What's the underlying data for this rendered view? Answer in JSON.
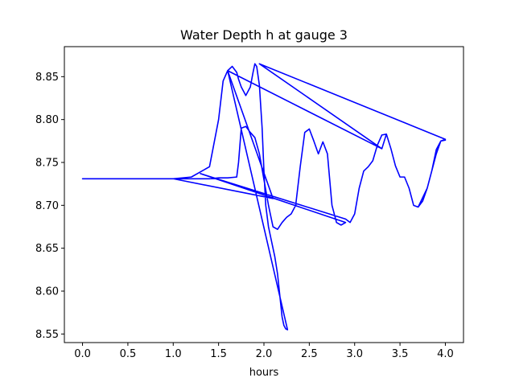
{
  "chart_data": {
    "type": "line",
    "title": "Water Depth h at gauge 3",
    "xlabel": "hours",
    "ylabel": "",
    "xlim": [
      -0.2,
      4.2
    ],
    "ylim": [
      8.54,
      8.885
    ],
    "xticks": [
      0.0,
      0.5,
      1.0,
      1.5,
      2.0,
      2.5,
      3.0,
      3.5,
      4.0
    ],
    "xtick_labels": [
      "0.0",
      "0.5",
      "1.0",
      "1.5",
      "2.0",
      "2.5",
      "3.0",
      "3.5",
      "4.0"
    ],
    "yticks": [
      8.55,
      8.6,
      8.65,
      8.7,
      8.75,
      8.8,
      8.85
    ],
    "ytick_labels": [
      "8.55",
      "8.60",
      "8.65",
      "8.70",
      "8.75",
      "8.80",
      "8.85"
    ],
    "grid": false,
    "legend": "none",
    "series": [
      {
        "name": "",
        "color": "#0000ff",
        "x": [
          0.0,
          0.3,
          0.6,
          0.9,
          1.0,
          1.2,
          1.4,
          1.5,
          1.55,
          1.6,
          1.65,
          1.7,
          1.72,
          1.75,
          1.8,
          1.85,
          1.88,
          1.9,
          1.92,
          1.95,
          1.98,
          2.0,
          2.02,
          2.05,
          2.08,
          2.1,
          2.12,
          2.15,
          2.18,
          2.2,
          2.22,
          2.24,
          2.26,
          1.6,
          3.3,
          3.35,
          3.4,
          3.45,
          3.5,
          3.55,
          3.6,
          3.65,
          3.7,
          3.8,
          3.9,
          3.95,
          4.0,
          1.95,
          3.3,
          1.6,
          2.1,
          1.0,
          0.12,
          1.0,
          1.2,
          1.3,
          1.4,
          1.5,
          1.6,
          1.7,
          1.72,
          1.75,
          1.8,
          1.85,
          1.9,
          1.95,
          2.0,
          2.05,
          2.1,
          2.15,
          2.2,
          2.25,
          2.3,
          2.35,
          2.4,
          2.45,
          2.5,
          2.55,
          2.6,
          2.65,
          2.7,
          2.75,
          2.8,
          2.85,
          2.9,
          1.3,
          2.9,
          2.95,
          3.0,
          3.05,
          3.1,
          3.15,
          3.2,
          3.25,
          3.3,
          3.35,
          3.4,
          3.45,
          3.5,
          3.55,
          3.6,
          3.65,
          3.7,
          3.75,
          3.8,
          3.85,
          3.9,
          3.95,
          4.0
        ],
        "y": [
          8.731,
          8.731,
          8.731,
          8.731,
          8.731,
          8.733,
          8.745,
          8.8,
          8.845,
          8.857,
          8.862,
          8.855,
          8.847,
          8.838,
          8.828,
          8.838,
          8.855,
          8.865,
          8.862,
          8.84,
          8.79,
          8.74,
          8.7,
          8.675,
          8.66,
          8.65,
          8.64,
          8.62,
          8.59,
          8.57,
          8.56,
          8.556,
          8.555,
          8.857,
          8.766,
          8.783,
          8.766,
          8.746,
          8.733,
          8.733,
          8.72,
          8.7,
          8.698,
          8.72,
          8.76,
          8.775,
          8.777,
          8.865,
          8.766,
          8.857,
          8.708,
          8.731,
          8.731,
          8.731,
          8.731,
          8.731,
          8.731,
          8.732,
          8.732,
          8.733,
          8.75,
          8.79,
          8.792,
          8.785,
          8.779,
          8.76,
          8.73,
          8.7,
          8.675,
          8.672,
          8.68,
          8.686,
          8.69,
          8.7,
          8.745,
          8.785,
          8.789,
          8.775,
          8.76,
          8.774,
          8.76,
          8.7,
          8.68,
          8.677,
          8.68,
          8.737,
          8.684,
          8.68,
          8.69,
          8.72,
          8.74,
          8.745,
          8.752,
          8.77,
          8.782,
          8.783,
          8.766,
          8.746,
          8.733,
          8.733,
          8.72,
          8.7,
          8.698,
          8.705,
          8.72,
          8.74,
          8.765,
          8.775,
          8.776
        ]
      }
    ]
  }
}
